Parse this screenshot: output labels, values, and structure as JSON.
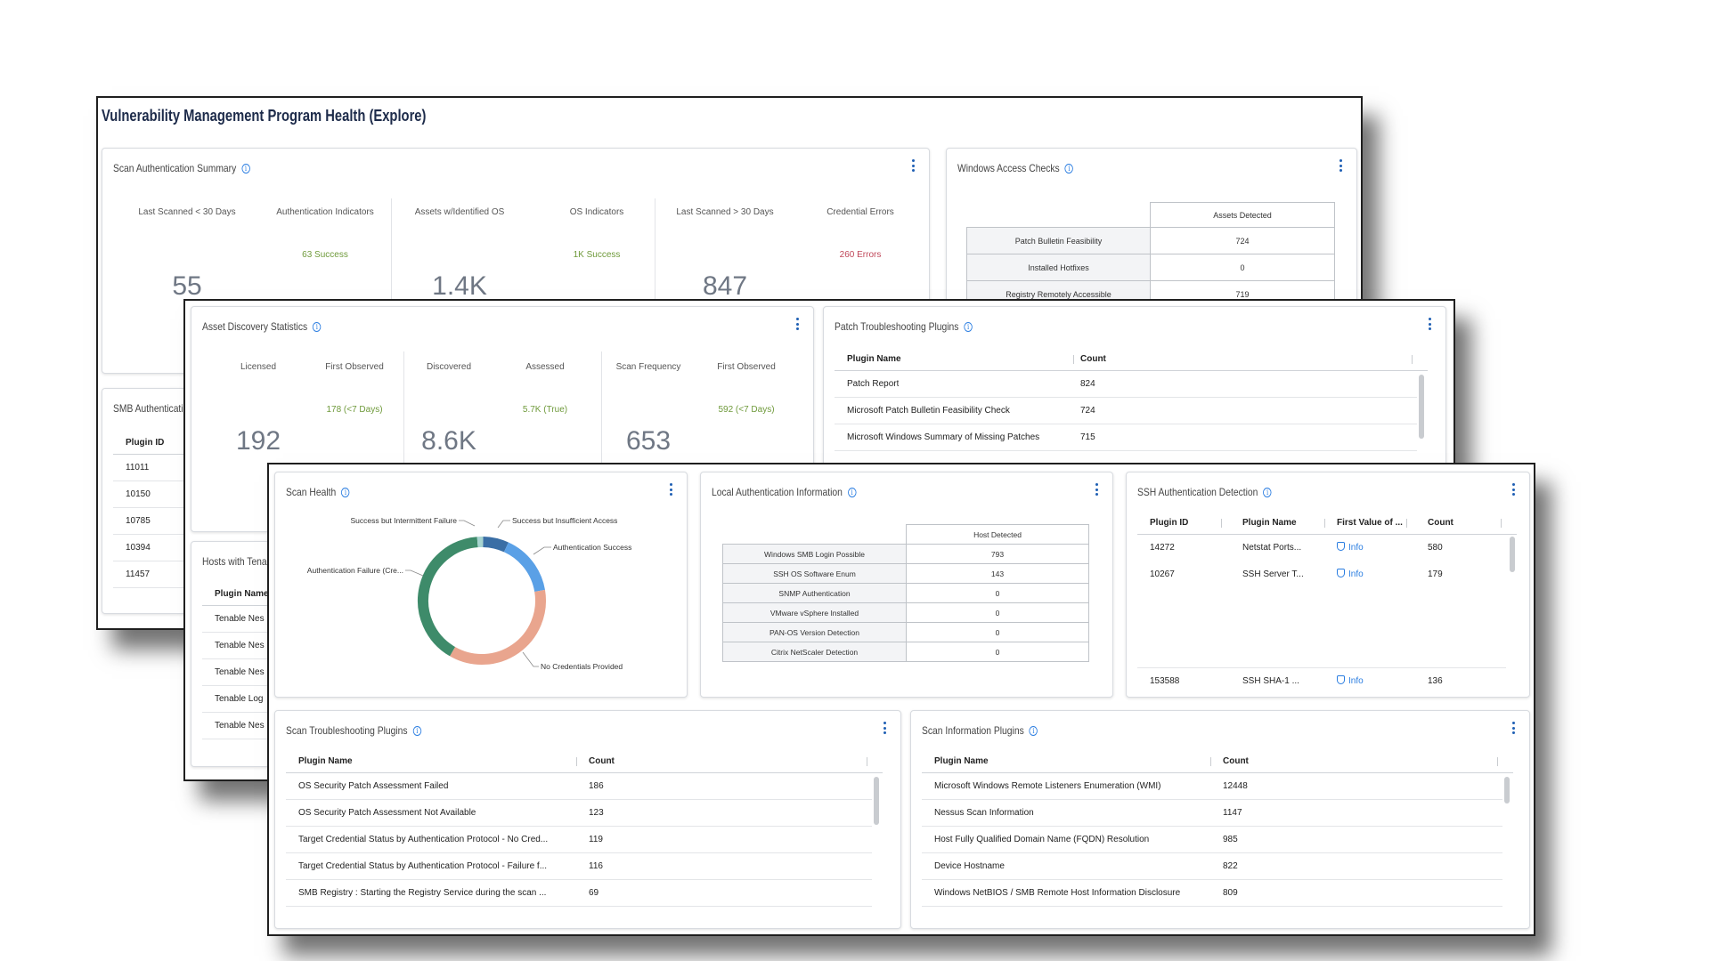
{
  "page_title": "Vulnerability Management Program Health (Explore)",
  "colors": {
    "success": "#6f9a3b",
    "error": "#c0485a",
    "accent": "#2a7de1",
    "donut_success": "#5aa0e6",
    "donut_fail": "#3e8b6a",
    "donut_nocred": "#e9a58e",
    "donut_insufficient": "#3a6ea5",
    "donut_intermittent": "#a7d4d0"
  },
  "scan_auth_summary": {
    "title": "Scan Authentication Summary",
    "groups": [
      {
        "head1": "Last Scanned < 30 Days",
        "head2": "Authentication Indicators",
        "sub": "63 Success",
        "big": "55"
      },
      {
        "head1": "Assets w/Identified OS",
        "head2": "OS Indicators",
        "sub": "1K Success",
        "big": "1.4K"
      },
      {
        "head1": "Last Scanned > 30 Days",
        "head2": "Credential Errors",
        "sub": "260 Errors",
        "big": "847"
      }
    ]
  },
  "windows_access": {
    "title": "Windows Access Checks",
    "col_header": "Assets Detected",
    "rows": [
      {
        "label": "Patch Bulletin Feasibility",
        "value": "724"
      },
      {
        "label": "Installed Hotfixes",
        "value": "0"
      },
      {
        "label": "Registry Remotely Accessible",
        "value": "719"
      }
    ]
  },
  "smb_auth": {
    "title": "SMB Authenticatior",
    "col_header": "Plugin ID",
    "rows": [
      "11011",
      "10150",
      "10785",
      "10394",
      "11457"
    ]
  },
  "hosts_tenable": {
    "title": "Hosts with Tenal",
    "col_header": "Plugin Name",
    "rows": [
      "Tenable Nes",
      "Tenable Nes",
      "Tenable Nes",
      "Tenable Log",
      "Tenable Nes"
    ]
  },
  "asset_discovery": {
    "title": "Asset Discovery Statistics",
    "groups": [
      {
        "head1": "Licensed",
        "head2": "First Observed",
        "sub": "178 (<7 Days)",
        "big": "192"
      },
      {
        "head1": "Discovered",
        "head2": "Assessed",
        "sub": "5.7K (True)",
        "big": "8.6K"
      },
      {
        "head1": "Scan Frequency",
        "head2": "First Observed",
        "sub": "592 (<7 Days)",
        "big": "653"
      }
    ]
  },
  "patch_troubleshooting": {
    "title": "Patch Troubleshooting Plugins",
    "headers": [
      "Plugin Name",
      "Count"
    ],
    "rows": [
      {
        "name": "Patch Report",
        "count": "824"
      },
      {
        "name": "Microsoft Patch Bulletin Feasibility Check",
        "count": "724"
      },
      {
        "name": "Microsoft Windows Summary of Missing Patches",
        "count": "715"
      }
    ]
  },
  "scan_health": {
    "title": "Scan Health",
    "labels": {
      "intermittent": "Success but Intermittent Failure",
      "insufficient": "Success but Insufficient Access",
      "success": "Authentication Success",
      "failure": "Authentication Failure (Cre...",
      "nocred": "No Credentials Provided"
    },
    "slices": [
      {
        "key": "insufficient",
        "fraction": 0.065
      },
      {
        "key": "success",
        "fraction": 0.155
      },
      {
        "key": "nocred",
        "fraction": 0.36
      },
      {
        "key": "failure",
        "fraction": 0.405
      },
      {
        "key": "intermittent",
        "fraction": 0.015
      }
    ]
  },
  "local_auth": {
    "title": "Local Authentication Information",
    "col_header": "Host Detected",
    "rows": [
      {
        "label": "Windows SMB Login Possible",
        "value": "793"
      },
      {
        "label": "SSH OS Software Enum",
        "value": "143"
      },
      {
        "label": "SNMP Authentication",
        "value": "0"
      },
      {
        "label": "VMware vSphere Installed",
        "value": "0"
      },
      {
        "label": "PAN-OS Version Detection",
        "value": "0"
      },
      {
        "label": "Citrix NetScaler Detection",
        "value": "0"
      }
    ]
  },
  "ssh_auth": {
    "title": "SSH Authentication Detection",
    "headers": [
      "Plugin ID",
      "Plugin Name",
      "First Value of ...",
      "Count"
    ],
    "rows": [
      {
        "id": "14272",
        "name": "Netstat Ports...",
        "value": "Info",
        "count": "580"
      },
      {
        "id": "10267",
        "name": "SSH Server T...",
        "value": "Info",
        "count": "179"
      },
      {
        "id": "153588",
        "name": "SSH SHA-1 ...",
        "value": "Info",
        "count": "136"
      }
    ]
  },
  "scan_troubleshooting": {
    "title": "Scan Troubleshooting Plugins",
    "headers": [
      "Plugin Name",
      "Count"
    ],
    "rows": [
      {
        "name": "OS Security Patch Assessment Failed",
        "count": "186"
      },
      {
        "name": "OS Security Patch Assessment Not Available",
        "count": "123"
      },
      {
        "name": "Target Credential Status by Authentication Protocol - No Cred...",
        "count": "119"
      },
      {
        "name": "Target Credential Status by Authentication Protocol - Failure f...",
        "count": "116"
      },
      {
        "name": "SMB Registry : Starting the Registry Service during the scan ...",
        "count": "69"
      }
    ]
  },
  "scan_information": {
    "title": "Scan Information Plugins",
    "headers": [
      "Plugin Name",
      "Count"
    ],
    "rows": [
      {
        "name": "Microsoft Windows Remote Listeners Enumeration (WMI)",
        "count": "12448"
      },
      {
        "name": "Nessus Scan Information",
        "count": "1147"
      },
      {
        "name": "Host Fully Qualified Domain Name (FQDN) Resolution",
        "count": "985"
      },
      {
        "name": "Device Hostname",
        "count": "822"
      },
      {
        "name": "Windows NetBIOS / SMB Remote Host Information Disclosure",
        "count": "809"
      }
    ]
  }
}
